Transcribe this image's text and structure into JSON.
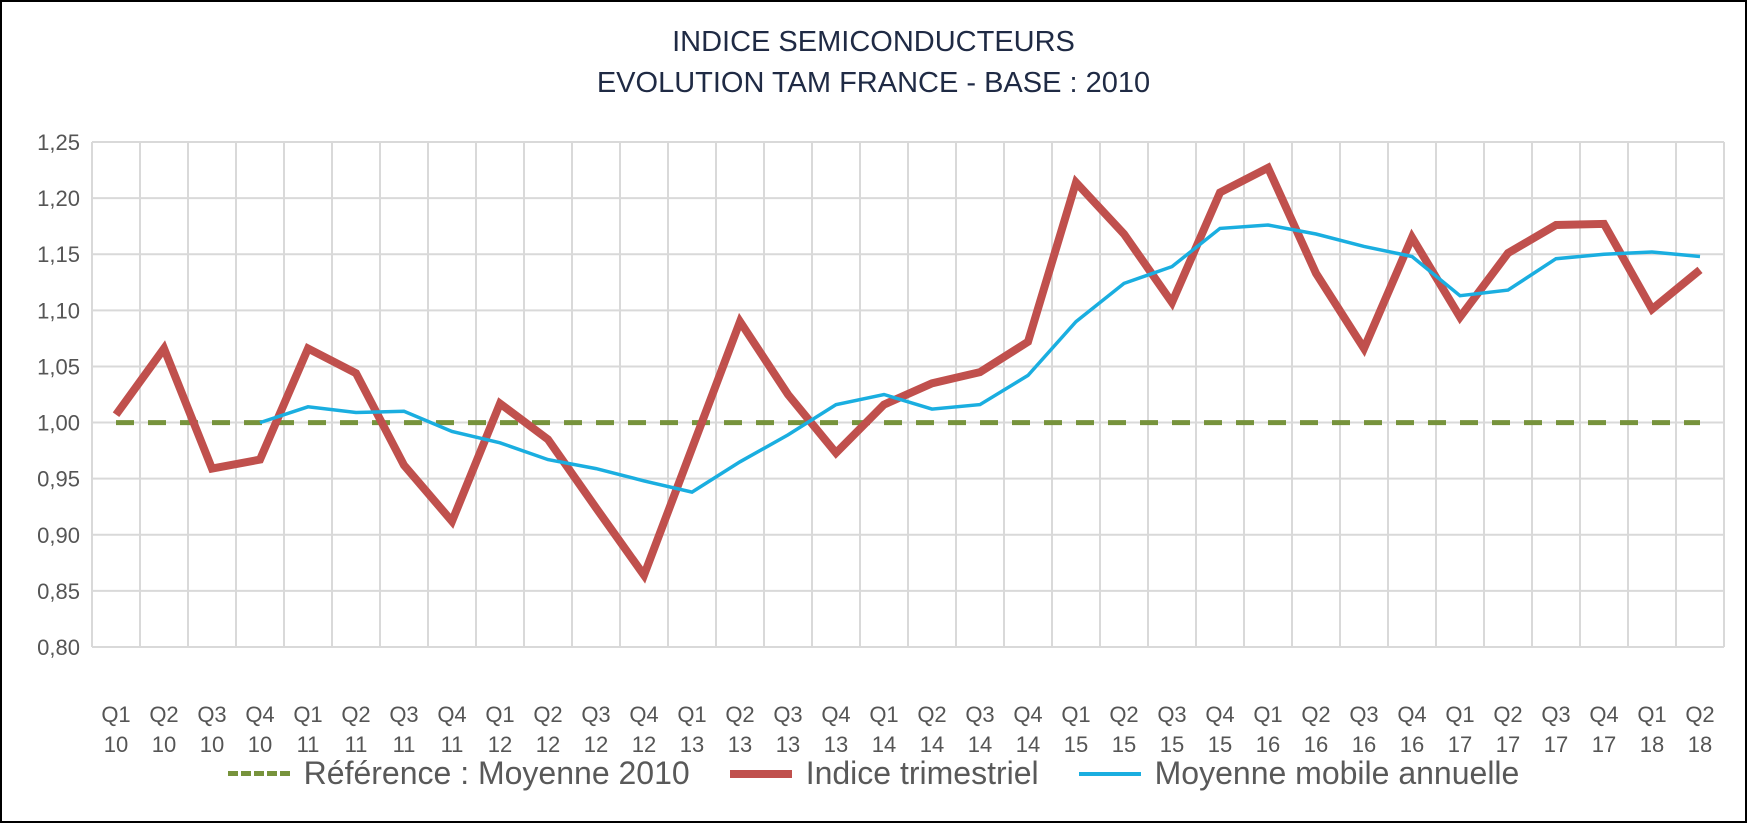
{
  "chart_data": {
    "type": "line",
    "title": [
      "INDICE SEMICONDUCTEURS",
      "EVOLUTION TAM FRANCE - BASE : 2010"
    ],
    "xlabel": "",
    "ylabel": "",
    "ylim": [
      0.8,
      1.25
    ],
    "yticks": [
      "0,80",
      "0,85",
      "0,90",
      "0,95",
      "1,00",
      "1,05",
      "1,10",
      "1,15",
      "1,20",
      "1,25"
    ],
    "grid": true,
    "legend_position": "bottom",
    "categories": [
      [
        "Q1",
        "10"
      ],
      [
        "Q2",
        "10"
      ],
      [
        "Q3",
        "10"
      ],
      [
        "Q4",
        "10"
      ],
      [
        "Q1",
        "11"
      ],
      [
        "Q2",
        "11"
      ],
      [
        "Q3",
        "11"
      ],
      [
        "Q4",
        "11"
      ],
      [
        "Q1",
        "12"
      ],
      [
        "Q2",
        "12"
      ],
      [
        "Q3",
        "12"
      ],
      [
        "Q4",
        "12"
      ],
      [
        "Q1",
        "13"
      ],
      [
        "Q2",
        "13"
      ],
      [
        "Q3",
        "13"
      ],
      [
        "Q4",
        "13"
      ],
      [
        "Q1",
        "14"
      ],
      [
        "Q2",
        "14"
      ],
      [
        "Q3",
        "14"
      ],
      [
        "Q4",
        "14"
      ],
      [
        "Q1",
        "15"
      ],
      [
        "Q2",
        "15"
      ],
      [
        "Q3",
        "15"
      ],
      [
        "Q4",
        "15"
      ],
      [
        "Q1",
        "16"
      ],
      [
        "Q2",
        "16"
      ],
      [
        "Q3",
        "16"
      ],
      [
        "Q4",
        "16"
      ],
      [
        "Q1",
        "17"
      ],
      [
        "Q2",
        "17"
      ],
      [
        "Q3",
        "17"
      ],
      [
        "Q4",
        "17"
      ],
      [
        "Q1",
        "18"
      ],
      [
        "Q2",
        "18"
      ]
    ],
    "series": [
      {
        "name": "Référence : Moyenne 2010",
        "color": "#77933c",
        "style": "dashed",
        "values": [
          1,
          1,
          1,
          1,
          1,
          1,
          1,
          1,
          1,
          1,
          1,
          1,
          1,
          1,
          1,
          1,
          1,
          1,
          1,
          1,
          1,
          1,
          1,
          1,
          1,
          1,
          1,
          1,
          1,
          1,
          1,
          1,
          1,
          1
        ]
      },
      {
        "name": "Indice trimestriel",
        "color": "#c0504d",
        "style": "solid-thick",
        "values": [
          1.007,
          1.066,
          0.959,
          0.967,
          1.066,
          1.044,
          0.962,
          0.912,
          1.017,
          0.985,
          0.924,
          0.864,
          0.977,
          1.09,
          1.025,
          0.973,
          1.016,
          1.035,
          1.045,
          1.072,
          1.214,
          1.168,
          1.107,
          1.205,
          1.227,
          1.133,
          1.066,
          1.165,
          1.094,
          1.151,
          1.176,
          1.177,
          1.101,
          1.136
        ]
      },
      {
        "name": "Moyenne mobile annuelle",
        "color": "#1aaee0",
        "style": "solid",
        "values": [
          null,
          null,
          null,
          1.0,
          1.014,
          1.009,
          1.01,
          0.992,
          0.982,
          0.967,
          0.959,
          0.948,
          0.938,
          0.965,
          0.989,
          1.016,
          1.025,
          1.012,
          1.016,
          1.042,
          1.09,
          1.124,
          1.139,
          1.173,
          1.176,
          1.168,
          1.157,
          1.148,
          1.113,
          1.118,
          1.146,
          1.15,
          1.152,
          1.148
        ]
      }
    ]
  }
}
